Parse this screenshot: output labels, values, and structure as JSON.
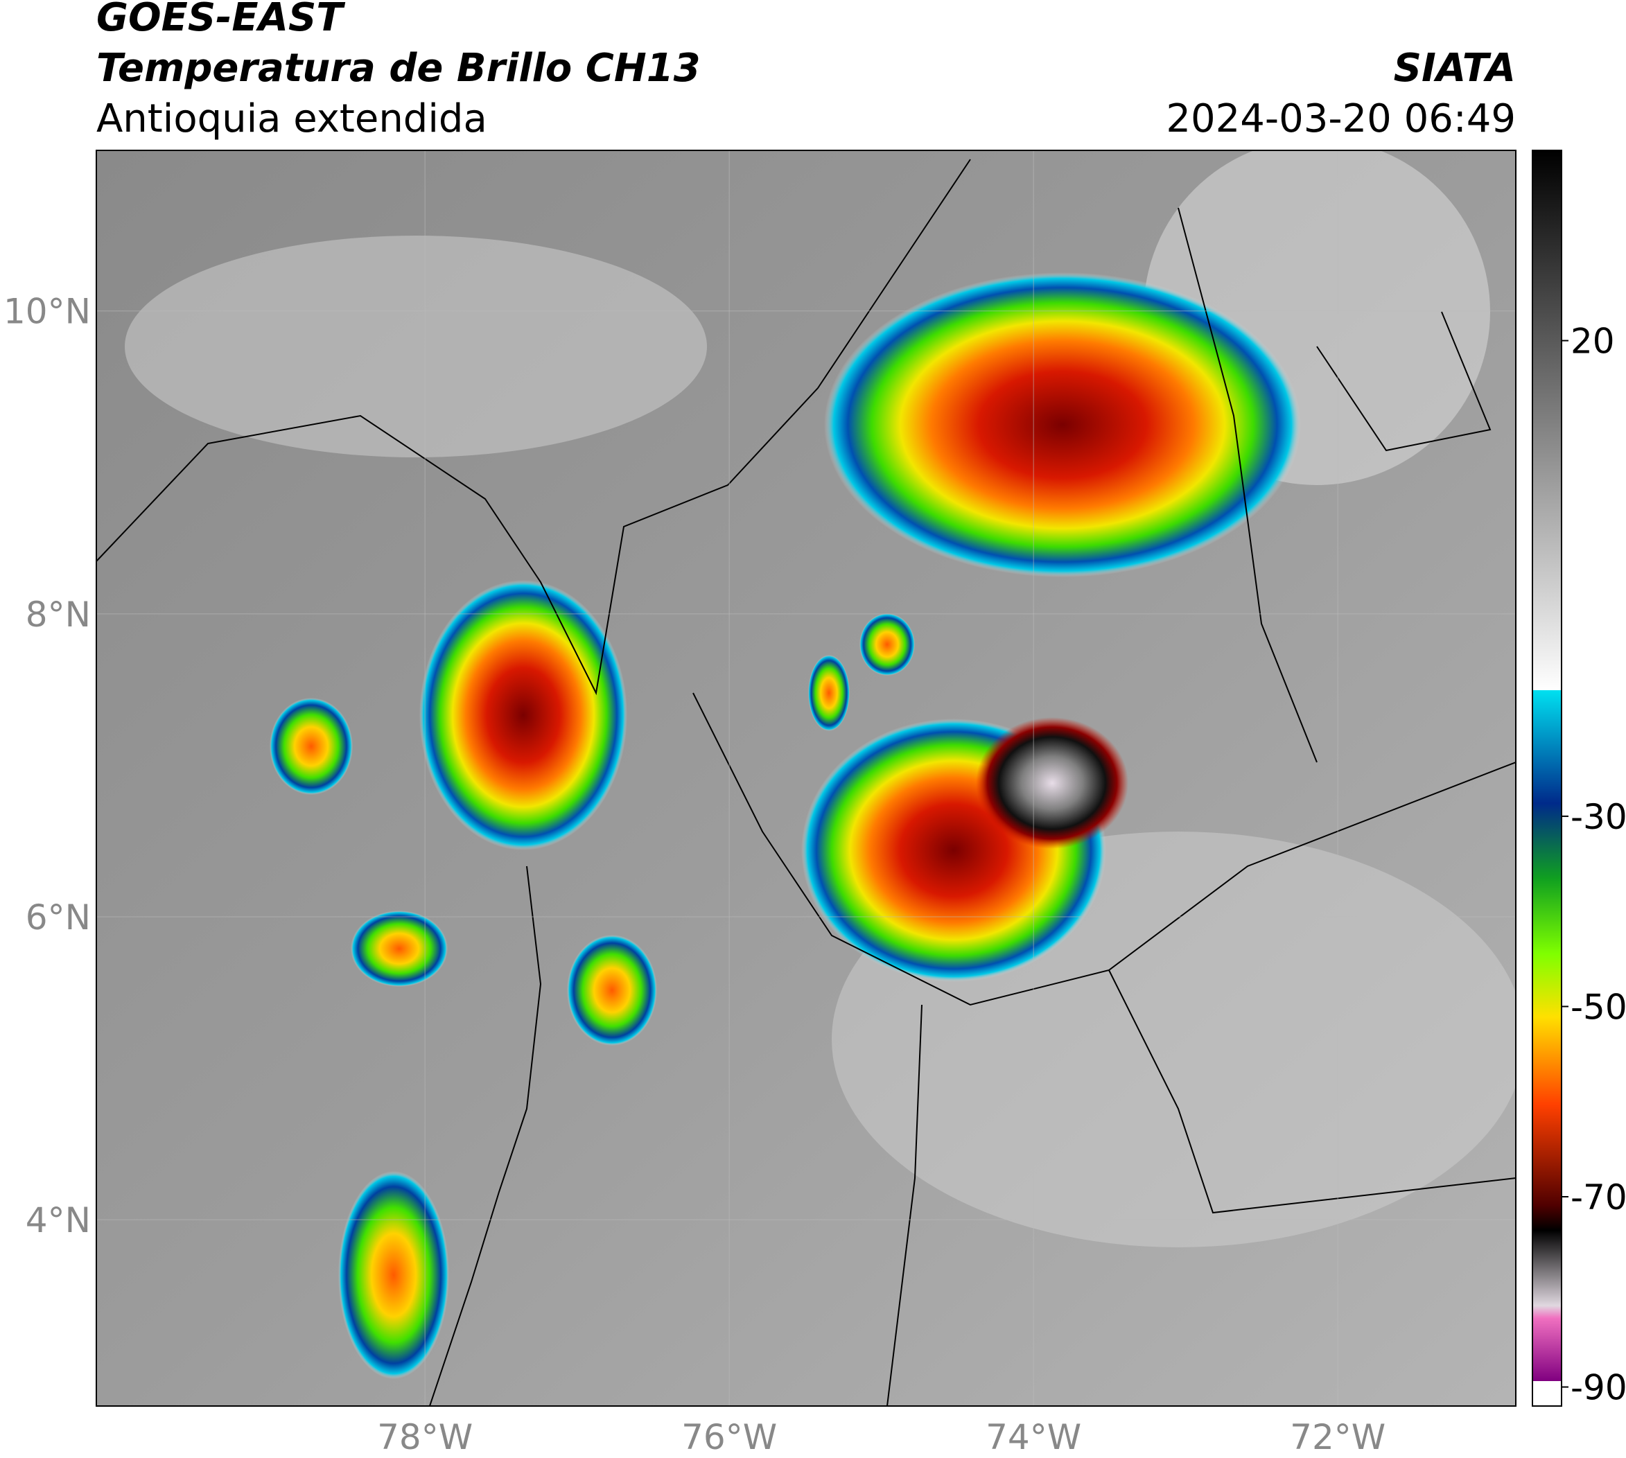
{
  "header": {
    "title": "GOES-EAST",
    "subtitle": "Temperatura de Brillo CH13",
    "region": "Antioquia extendida",
    "source": "SIATA",
    "datetime": "2024-03-20 06:49"
  },
  "map": {
    "xlim": [
      -80.16,
      -70.83
    ],
    "ylim": [
      2.77,
      11.06
    ],
    "xticks": [
      {
        "value": -78,
        "label": "78°W"
      },
      {
        "value": -76,
        "label": "76°W"
      },
      {
        "value": -74,
        "label": "74°W"
      },
      {
        "value": -72,
        "label": "72°W"
      }
    ],
    "yticks": [
      {
        "value": 4,
        "label": "4°N"
      },
      {
        "value": 6,
        "label": "6°N"
      },
      {
        "value": 8,
        "label": "8°N"
      },
      {
        "value": 10,
        "label": "10°N"
      }
    ]
  },
  "colorbar": {
    "clim": [
      -92,
      40
    ],
    "ticks": [
      20,
      -30,
      -50,
      -70,
      -90
    ]
  }
}
